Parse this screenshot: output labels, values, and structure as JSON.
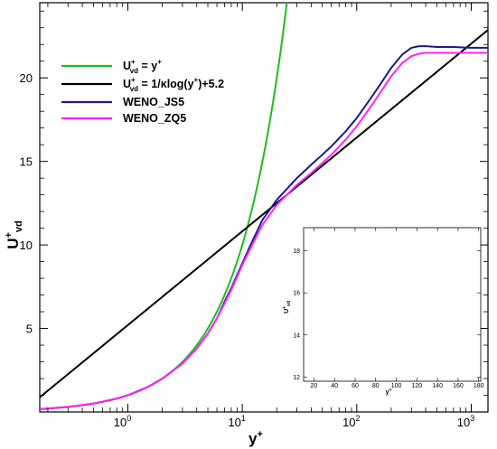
{
  "chart_data": {
    "type": "line",
    "xlabel": {
      "main": "y",
      "sup": "+"
    },
    "ylabel": {
      "main": "U",
      "sup": "+",
      "sub": "vd"
    },
    "x_scale": "log",
    "xlim": [
      0.17,
      1400
    ],
    "ylim": [
      0,
      24.5
    ],
    "x_ticks": [
      {
        "value": 1,
        "base": "10",
        "exp": "0"
      },
      {
        "value": 10,
        "base": "10",
        "exp": "1"
      },
      {
        "value": 100,
        "base": "10",
        "exp": "2"
      },
      {
        "value": 1000,
        "base": "10",
        "exp": "3"
      }
    ],
    "y_ticks": [
      {
        "value": 5,
        "label": "5"
      },
      {
        "value": 10,
        "label": "10"
      },
      {
        "value": 15,
        "label": "15"
      },
      {
        "value": 20,
        "label": "20"
      }
    ],
    "grid": false,
    "legend_position": "top-left",
    "legend": [
      {
        "pre": "U",
        "sub": "vd",
        "sup": "+",
        "post": " = y",
        "post_sup": "+",
        "color": "#22bb22"
      },
      {
        "pre": "U",
        "sub": "vd",
        "sup": "+",
        "post": " = 1/κlog(y",
        "post_sup": "+",
        "post2": ")+5.2",
        "color": "#000000"
      },
      {
        "text": "WENO_JS5",
        "color": "#1a1a8c"
      },
      {
        "text": "WENO_ZQ5",
        "color": "#ff22ff"
      }
    ],
    "series": [
      {
        "color": "#22bb22",
        "style": "linear",
        "x": [
          0.17,
          0.5,
          1,
          2,
          4,
          6,
          8,
          10,
          12,
          15,
          18,
          20,
          22,
          25
        ],
        "y": [
          0.17,
          0.5,
          1,
          2,
          4,
          6,
          8,
          10,
          12,
          15,
          18,
          20,
          22,
          25
        ]
      },
      {
        "color": "#000000",
        "style": "log-law",
        "x": [
          0.17,
          1,
          10,
          100,
          1000,
          1400
        ],
        "y": [
          0.87,
          5.2,
          10.82,
          16.43,
          22.04,
          22.87
        ]
      },
      {
        "color": "#1a1a8c",
        "x": [
          0.17,
          0.3,
          0.5,
          0.8,
          1,
          1.5,
          2,
          3,
          4,
          5,
          6,
          7,
          8,
          10,
          12,
          15,
          20,
          30,
          40,
          50,
          60,
          80,
          100,
          130,
          160,
          200,
          250,
          300,
          350,
          400,
          500,
          700,
          1000,
          1400
        ],
        "y": [
          0.17,
          0.3,
          0.5,
          0.8,
          1.0,
          1.5,
          2.0,
          2.9,
          3.8,
          4.7,
          5.6,
          6.6,
          7.4,
          8.9,
          10.1,
          11.5,
          12.7,
          14.0,
          14.8,
          15.4,
          15.9,
          16.8,
          17.6,
          18.7,
          19.6,
          20.6,
          21.4,
          21.8,
          21.9,
          21.9,
          21.85,
          21.85,
          21.8,
          21.8
        ]
      },
      {
        "color": "#ff22ff",
        "x": [
          0.17,
          0.3,
          0.5,
          0.8,
          1,
          1.5,
          2,
          3,
          4,
          5,
          6,
          7,
          8,
          10,
          12,
          15,
          20,
          30,
          40,
          50,
          60,
          80,
          100,
          130,
          160,
          200,
          250,
          300,
          350,
          400,
          500,
          700,
          1000,
          1400
        ],
        "y": [
          0.17,
          0.3,
          0.5,
          0.8,
          1.0,
          1.5,
          2.0,
          2.9,
          3.8,
          4.7,
          5.6,
          6.5,
          7.3,
          8.8,
          9.9,
          11.2,
          12.4,
          13.6,
          14.3,
          14.9,
          15.4,
          16.3,
          17.1,
          18.2,
          19.1,
          20.1,
          20.9,
          21.3,
          21.45,
          21.5,
          21.5,
          21.5,
          21.5,
          21.5
        ]
      }
    ],
    "inset": {
      "xlim": [
        10,
        182
      ],
      "ylim": [
        11.8,
        19.1
      ],
      "x_ticks": [
        {
          "value": 20,
          "label": "20"
        },
        {
          "value": 40,
          "label": "40"
        },
        {
          "value": 60,
          "label": "60"
        },
        {
          "value": 80,
          "label": "80"
        },
        {
          "value": 100,
          "label": "100"
        },
        {
          "value": 120,
          "label": "120"
        },
        {
          "value": 140,
          "label": "140"
        },
        {
          "value": 160,
          "label": "160"
        },
        {
          "value": 180,
          "label": "180"
        }
      ],
      "y_ticks": [
        {
          "value": 12,
          "label": "12"
        },
        {
          "value": 14,
          "label": "14"
        },
        {
          "value": 16,
          "label": "16"
        },
        {
          "value": 18,
          "label": "18"
        }
      ],
      "xlabel": {
        "main": "y",
        "sup": "+"
      },
      "ylabel": {
        "main": "U",
        "sup": "+",
        "sub": "vd"
      }
    }
  }
}
